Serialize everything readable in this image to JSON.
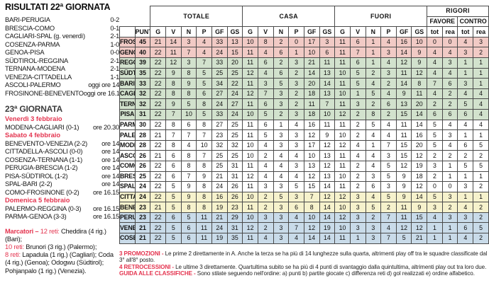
{
  "colors": {
    "accent": "#e4344f",
    "border": "#4a4a4a",
    "zone_promotion": "#f1cac5",
    "zone_playoff": "#d2e2cd",
    "zone_neutral": "#ffffff",
    "zone_playout": "#f6f2cc",
    "zone_relegation": "#c9dbe9"
  },
  "results": {
    "title": "RISULTATI 22ª GIORNATA",
    "matches": [
      {
        "match": "BARI-PERUGIA",
        "score": "0-2"
      },
      {
        "match": "BRESCIA-COMO",
        "score": "0-1"
      },
      {
        "match": "CAGLIARI-SPAL (g. venerdì)",
        "score": "2-1"
      },
      {
        "match": "COSENZA-PARMA",
        "score": "1-0"
      },
      {
        "match": "GENOA-PISA",
        "score": "0-0"
      },
      {
        "match": "SÜDTIROL-REGGINA",
        "score": "2-1"
      },
      {
        "match": "TERNANA-MODENA",
        "score": "2-1"
      },
      {
        "match": "VENEZIA-CITTADELLA",
        "score": "1-1"
      },
      {
        "match": "ASCOLI-PALERMO",
        "score": "oggi ore 14"
      },
      {
        "match": "FROSINONE-BENEVENTO",
        "score": "oggi ore 16.15"
      }
    ]
  },
  "fixtures": {
    "title": "23ª GIORNATA",
    "groups": [
      {
        "day": "Venerdì 3 febbraio",
        "matches": [
          {
            "match": "MODENA-CAGLIARI (0-1)",
            "time": "ore 20.30"
          }
        ]
      },
      {
        "day": "Sabato 4 febbraio",
        "matches": [
          {
            "match": "BENEVENTO-VENEZIA (2-2)",
            "time": "ore 14"
          },
          {
            "match": "CITTADELLA-ASCOLI (0-0)",
            "time": "ore 14"
          },
          {
            "match": "COSENZA-TERNANA (1-1)",
            "time": "ore 14"
          },
          {
            "match": "PERUGIA-BRESCIA (1-2)",
            "time": "ore 14"
          },
          {
            "match": "PISA-SÜDTIROL (1-2)",
            "time": "ore 14"
          },
          {
            "match": "SPAL-BARI (2-2)",
            "time": "ore 14"
          },
          {
            "match": "COMO-FROSINONE (0-2)",
            "time": "ore 16.15"
          }
        ]
      },
      {
        "day": "Domenica 5 febbraio",
        "matches": [
          {
            "match": "PALERMO-REGGINA (0-3)",
            "time": "ore 16.15"
          },
          {
            "match": "PARMA-GENOA (3-3)",
            "time": "ore 16.15"
          }
        ]
      }
    ]
  },
  "scorers": {
    "label": "Marcatori –",
    "entries": [
      {
        "count": "12 reti:",
        "names": "Cheddira (4 rig.) (Bari);"
      },
      {
        "count": "10 reti:",
        "names": "Brunori (3 rig.) (Palermo);"
      },
      {
        "count": "8 reti:",
        "names": "Lapadula (1 rig.) (Cagliari); Coda (4 rig.) (Genoa); Odogwu (Südtirol); Pohjanpalo (1 rig.) (Venezia)."
      }
    ]
  },
  "standings": {
    "punti_label": "PUNTI",
    "groups": [
      {
        "label": "TOTALE",
        "cols": 6
      },
      {
        "label": "CASA",
        "cols": 6
      },
      {
        "label": "FUORI",
        "cols": 6
      },
      {
        "label": "RIGORI",
        "cols": 4,
        "sub": true
      }
    ],
    "rigori_sub": [
      "FAVORE",
      "CONTRO"
    ],
    "stat_cols": [
      "G",
      "V",
      "N",
      "P",
      "GF",
      "GS"
    ],
    "rigori_cols": [
      "tot",
      "rea",
      "tot",
      "rea"
    ],
    "rows": [
      {
        "name": "FROSINONE",
        "zone": "promotion",
        "punti": 45,
        "tot": [
          21,
          14,
          3,
          4,
          33,
          13
        ],
        "casa": [
          10,
          8,
          2,
          0,
          17,
          3
        ],
        "fuori": [
          11,
          6,
          1,
          4,
          16,
          10
        ],
        "rigori": [
          0,
          0,
          4,
          3
        ]
      },
      {
        "name": "GENOA",
        "zone": "promotion",
        "punti": 40,
        "tot": [
          22,
          11,
          7,
          4,
          24,
          15
        ],
        "casa": [
          11,
          4,
          6,
          1,
          10,
          6
        ],
        "fuori": [
          11,
          7,
          1,
          3,
          14,
          9
        ],
        "rigori": [
          4,
          4,
          3,
          2
        ]
      },
      {
        "name": "REGGINA",
        "zone": "playoff",
        "punti": 39,
        "tot": [
          22,
          12,
          3,
          7,
          33,
          20
        ],
        "casa": [
          11,
          6,
          2,
          3,
          21,
          11
        ],
        "fuori": [
          11,
          6,
          1,
          4,
          12,
          9
        ],
        "rigori": [
          4,
          3,
          1,
          1
        ]
      },
      {
        "name": "SÜDTIROL",
        "zone": "playoff",
        "punti": 35,
        "tot": [
          22,
          9,
          8,
          5,
          25,
          25
        ],
        "casa": [
          12,
          4,
          6,
          2,
          14,
          13
        ],
        "fuori": [
          10,
          5,
          2,
          3,
          11,
          12
        ],
        "rigori": [
          4,
          4,
          1,
          1
        ]
      },
      {
        "name": "BARI",
        "zone": "playoff",
        "punti": 33,
        "tot": [
          22,
          8,
          9,
          5,
          34,
          22
        ],
        "casa": [
          11,
          3,
          5,
          3,
          20,
          14
        ],
        "fuori": [
          11,
          5,
          4,
          2,
          14,
          8
        ],
        "rigori": [
          7,
          6,
          3,
          1
        ]
      },
      {
        "name": "CAGLIARI",
        "zone": "playoff",
        "punti": 32,
        "tot": [
          22,
          8,
          8,
          6,
          27,
          24
        ],
        "casa": [
          12,
          7,
          3,
          2,
          18,
          13
        ],
        "fuori": [
          10,
          1,
          5,
          4,
          9,
          11
        ],
        "rigori": [
          4,
          2,
          4,
          4
        ]
      },
      {
        "name": "TERNANA",
        "zone": "playoff",
        "punti": 32,
        "tot": [
          22,
          9,
          5,
          8,
          24,
          27
        ],
        "casa": [
          11,
          6,
          3,
          2,
          11,
          7
        ],
        "fuori": [
          11,
          3,
          2,
          6,
          13,
          20
        ],
        "rigori": [
          2,
          2,
          5,
          4
        ]
      },
      {
        "name": "PISA",
        "zone": "playoff",
        "punti": 31,
        "tot": [
          22,
          7,
          10,
          5,
          33,
          24
        ],
        "casa": [
          10,
          5,
          2,
          3,
          18,
          10
        ],
        "fuori": [
          12,
          2,
          8,
          2,
          15,
          14
        ],
        "rigori": [
          6,
          6,
          6,
          4
        ]
      },
      {
        "name": "PARMA",
        "zone": "neutral",
        "punti": 30,
        "tot": [
          22,
          8,
          6,
          8,
          27,
          25
        ],
        "casa": [
          11,
          6,
          1,
          4,
          16,
          11
        ],
        "fuori": [
          11,
          2,
          5,
          4,
          11,
          14
        ],
        "rigori": [
          5,
          4,
          4,
          4
        ]
      },
      {
        "name": "PALERMO",
        "zone": "neutral",
        "punti": 28,
        "tot": [
          21,
          7,
          7,
          7,
          23,
          25
        ],
        "casa": [
          11,
          5,
          3,
          3,
          12,
          9
        ],
        "fuori": [
          10,
          2,
          4,
          4,
          11,
          16
        ],
        "rigori": [
          5,
          3,
          1,
          1
        ]
      },
      {
        "name": "MODENA",
        "zone": "neutral",
        "punti": 28,
        "tot": [
          22,
          8,
          4,
          10,
          32,
          32
        ],
        "casa": [
          10,
          4,
          3,
          3,
          17,
          12
        ],
        "fuori": [
          12,
          4,
          1,
          7,
          15,
          20
        ],
        "rigori": [
          5,
          4,
          6,
          5
        ]
      },
      {
        "name": "ASCOLI",
        "zone": "neutral",
        "punti": 26,
        "tot": [
          21,
          6,
          8,
          7,
          25,
          25
        ],
        "casa": [
          10,
          2,
          4,
          4,
          10,
          13
        ],
        "fuori": [
          11,
          4,
          4,
          3,
          15,
          12
        ],
        "rigori": [
          2,
          2,
          2,
          2
        ]
      },
      {
        "name": "COMO",
        "zone": "neutral",
        "punti": 26,
        "tot": [
          22,
          6,
          8,
          8,
          25,
          31
        ],
        "casa": [
          11,
          4,
          4,
          3,
          13,
          12
        ],
        "fuori": [
          11,
          2,
          4,
          5,
          12,
          19
        ],
        "rigori": [
          3,
          1,
          5,
          5
        ]
      },
      {
        "name": "BRESCIA",
        "zone": "neutral",
        "punti": 25,
        "tot": [
          22,
          6,
          7,
          9,
          21,
          31
        ],
        "casa": [
          12,
          4,
          4,
          4,
          12,
          13
        ],
        "fuori": [
          10,
          2,
          3,
          5,
          9,
          18
        ],
        "rigori": [
          2,
          1,
          1,
          1
        ]
      },
      {
        "name": "SPAL",
        "zone": "neutral",
        "punti": 24,
        "tot": [
          22,
          5,
          9,
          8,
          24,
          26
        ],
        "casa": [
          11,
          3,
          3,
          5,
          15,
          14
        ],
        "fuori": [
          11,
          2,
          6,
          3,
          9,
          12
        ],
        "rigori": [
          0,
          0,
          3,
          2
        ]
      },
      {
        "name": "CITTADELLA",
        "zone": "playout",
        "punti": 24,
        "tot": [
          22,
          5,
          9,
          8,
          16,
          26
        ],
        "casa": [
          10,
          2,
          5,
          3,
          7,
          12
        ],
        "fuori": [
          12,
          3,
          4,
          5,
          9,
          14
        ],
        "rigori": [
          5,
          3,
          1,
          1
        ]
      },
      {
        "name": "BENEVENTO",
        "zone": "playout",
        "punti": 23,
        "tot": [
          21,
          5,
          8,
          8,
          19,
          23
        ],
        "casa": [
          11,
          2,
          3,
          6,
          8,
          14
        ],
        "fuori": [
          10,
          3,
          5,
          2,
          11,
          9
        ],
        "rigori": [
          3,
          2,
          4,
          2
        ]
      },
      {
        "name": "PERUGIA",
        "zone": "relegation",
        "punti": 23,
        "tot": [
          22,
          6,
          5,
          11,
          21,
          29
        ],
        "casa": [
          10,
          3,
          3,
          4,
          10,
          14
        ],
        "fuori": [
          12,
          3,
          2,
          7,
          11,
          15
        ],
        "rigori": [
          4,
          3,
          3,
          2
        ]
      },
      {
        "name": "VENEZIA",
        "zone": "relegation",
        "punti": 21,
        "tot": [
          22,
          5,
          6,
          11,
          24,
          31
        ],
        "casa": [
          12,
          2,
          3,
          7,
          12,
          19
        ],
        "fuori": [
          10,
          3,
          3,
          4,
          12,
          12
        ],
        "rigori": [
          1,
          1,
          6,
          5
        ]
      },
      {
        "name": "COSENZA",
        "zone": "relegation",
        "punti": 21,
        "tot": [
          22,
          5,
          6,
          11,
          19,
          35
        ],
        "casa": [
          11,
          4,
          3,
          4,
          14,
          14
        ],
        "fuori": [
          11,
          1,
          3,
          7,
          5,
          21
        ],
        "rigori": [
          1,
          1,
          4,
          2
        ]
      }
    ]
  },
  "notes": [
    {
      "label": "3 PROMOZIONI -",
      "text": "Le prime 2 direttamente in A. Anche la terza se ha più di 14 lunghezze sulla quarta, altrimenti play off tra le squadre classificate dal 3° all'8° posto."
    },
    {
      "label": "4 RETROCESSIONI -",
      "text": "Le ultime 3 direttamente. Quartultima subito se ha più di 4 punti di svantaggio dalla quintultima, altrimenti play out tra loro due."
    },
    {
      "label": "GUIDA ALLE CLASSIFICHE -",
      "text": "Sono stilate seguendo nell'ordine: a) punti b) partite giocate c) differenza reti d) gol realizzati e) ordine alfabetico."
    }
  ]
}
